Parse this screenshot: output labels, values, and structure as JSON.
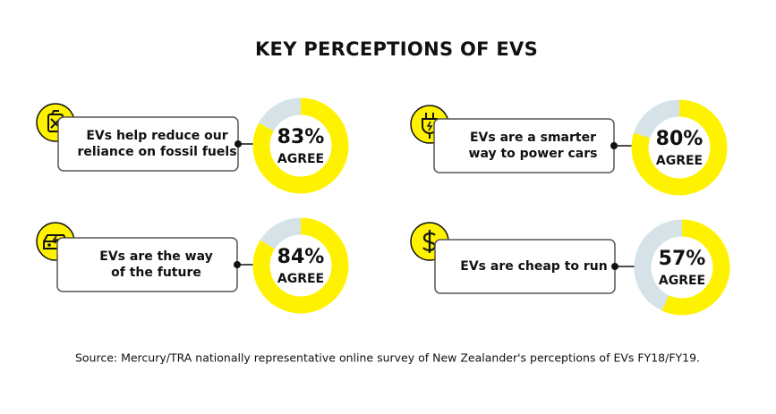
{
  "title": "KEY PERCEPTIONS OF EVS",
  "source": "Source: Mercury/TRA nationally representative online survey of New Zealander's perceptions of EVs FY18/FY19.",
  "chart_data": [
    {
      "type": "donut",
      "label": [
        "EVs help reduce our",
        "reliance on fossil fuels"
      ],
      "categories": [
        "AGREE",
        null
      ],
      "values": [
        83,
        17
      ],
      "value_labels": [
        "83%",
        null
      ],
      "colors": [
        "#fff200",
        "#d5e3e9"
      ]
    },
    {
      "type": "donut",
      "label": [
        "EVs are a smarter",
        "way to power cars"
      ],
      "categories": [
        "AGREE",
        null
      ],
      "values": [
        80,
        20
      ],
      "value_labels": [
        "80%",
        null
      ],
      "colors": [
        "#fff200",
        "#d5e3e9"
      ]
    },
    {
      "type": "donut",
      "label": [
        "EVs are the way",
        "of the future"
      ],
      "categories": [
        "AGREE",
        null
      ],
      "values": [
        84,
        16
      ],
      "value_labels": [
        "84%",
        null
      ],
      "colors": [
        "#fff200",
        "#d5e3e9"
      ]
    },
    {
      "type": "donut",
      "label": [
        "EVs are cheap to run"
      ],
      "categories": [
        "AGREE",
        null
      ],
      "values": [
        57,
        43
      ],
      "value_labels": [
        "57%",
        null
      ],
      "colors": [
        "#fff200",
        "#d5e3e9"
      ]
    }
  ]
}
